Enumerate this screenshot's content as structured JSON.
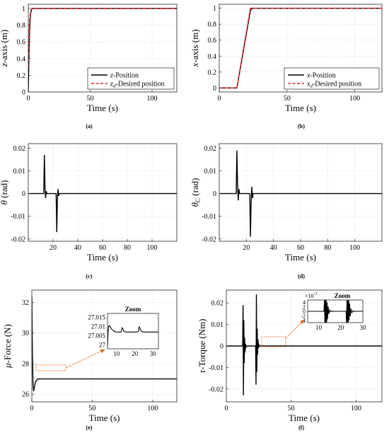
{
  "chart_data": [
    {
      "id": "a",
      "type": "line",
      "caption": "(a)",
      "xlabel": "Time (s)",
      "ylabel": "z-axis (m)",
      "xlim": [
        0,
        120
      ],
      "ylim": [
        0,
        1.05
      ],
      "xticks": [
        0,
        50,
        100
      ],
      "yticks": [
        0,
        0.2,
        0.4,
        0.6,
        0.8,
        1
      ],
      "grid": true,
      "legend": "bottom-right",
      "series": [
        {
          "name": "z-Position",
          "color": "#000000",
          "dash": "solid",
          "x": [
            0,
            0.5,
            1,
            1.5,
            2,
            2.5,
            3,
            4,
            6,
            120
          ],
          "y": [
            0,
            0.4,
            0.7,
            0.87,
            0.95,
            0.98,
            0.995,
            1.0,
            1.0,
            1.0
          ]
        },
        {
          "name": "zd-Desired position",
          "color": "#e8262b",
          "dash": "dashed",
          "x": [
            0,
            1,
            2,
            3,
            4,
            120
          ],
          "y": [
            0.3,
            0.85,
            0.98,
            1.0,
            1.0,
            1.0
          ]
        }
      ]
    },
    {
      "id": "b",
      "type": "line",
      "caption": "(b)",
      "xlabel": "Time (s)",
      "ylabel": "x-axis (m)",
      "xlim": [
        0,
        120
      ],
      "ylim": [
        -0.05,
        1.05
      ],
      "xticks": [
        0,
        50,
        100
      ],
      "yticks": [
        0,
        0.2,
        0.4,
        0.6,
        0.8,
        1
      ],
      "grid": true,
      "legend": "bottom-right",
      "series": [
        {
          "name": "x-Position",
          "color": "#000000",
          "dash": "solid",
          "x": [
            0,
            13,
            23,
            24,
            120
          ],
          "y": [
            0,
            0,
            0.97,
            1.0,
            1.0
          ]
        },
        {
          "name": "xd-Desired position",
          "color": "#e8262b",
          "dash": "dashed",
          "x": [
            0,
            13,
            23,
            120
          ],
          "y": [
            0,
            0,
            1.0,
            1.0
          ]
        }
      ]
    },
    {
      "id": "c",
      "type": "line",
      "caption": "(c)",
      "xlabel": "Time (s)",
      "ylabel": "θ (rad)",
      "xlim": [
        0,
        120
      ],
      "ylim": [
        -0.021,
        0.022
      ],
      "xticks": [
        20,
        40,
        60,
        80,
        100
      ],
      "yticks": [
        -0.02,
        -0.01,
        0,
        0.01,
        0.02
      ],
      "grid": true,
      "series": [
        {
          "name": "",
          "color": "#000000",
          "dash": "solid",
          "x": [
            0,
            12.5,
            13,
            13.5,
            14,
            14.5,
            15,
            15.5,
            22.5,
            23,
            23.5,
            24,
            24.5,
            25,
            25.5,
            120
          ],
          "y": [
            0,
            0,
            0.017,
            0.003,
            -0.002,
            0.001,
            0,
            0,
            0,
            -0.017,
            -0.003,
            0.002,
            -0.001,
            0,
            0,
            0
          ]
        }
      ]
    },
    {
      "id": "d",
      "type": "line",
      "caption": "(d)",
      "xlabel": "Time (s)",
      "ylabel": "θC (rad)",
      "xlim": [
        0,
        120
      ],
      "ylim": [
        -0.021,
        0.022
      ],
      "xticks": [
        20,
        40,
        60,
        80,
        100
      ],
      "yticks": [
        -0.02,
        -0.01,
        0,
        0.01,
        0.02
      ],
      "grid": true,
      "series": [
        {
          "name": "",
          "color": "#000000",
          "dash": "solid",
          "x": [
            0,
            12.5,
            13,
            13.5,
            14,
            14.5,
            15,
            15.5,
            22.5,
            23,
            23.5,
            24,
            24.5,
            25,
            25.5,
            120
          ],
          "y": [
            0,
            0,
            0.019,
            0.004,
            -0.003,
            0.002,
            0,
            0,
            0,
            -0.019,
            -0.004,
            0.003,
            -0.002,
            0,
            0,
            0
          ]
        }
      ]
    },
    {
      "id": "e",
      "type": "line",
      "caption": "(e)",
      "xlabel": "Time (s)",
      "ylabel": "μ-Force (N)",
      "xlim": [
        0,
        120
      ],
      "ylim": [
        25.5,
        32.8
      ],
      "xticks": [
        0,
        50,
        100
      ],
      "yticks": [
        26,
        28,
        30,
        32
      ],
      "grid": true,
      "series": [
        {
          "name": "",
          "color": "#000000",
          "dash": "solid",
          "x": [
            0,
            0.5,
            1,
            1.5,
            2,
            3,
            5,
            8,
            120
          ],
          "y": [
            32.4,
            28.5,
            26.6,
            26.2,
            26.4,
            26.8,
            27.0,
            27.0,
            27.0
          ]
        }
      ],
      "inset": {
        "title": "Zoom",
        "xlim": [
          5,
          33
        ],
        "ylim": [
          26.998,
          27.017
        ],
        "xticks": [
          10,
          20,
          30
        ],
        "yticks": [
          27,
          27.005,
          27.01,
          27.015
        ],
        "ytick_labels": [
          "27",
          "27.005",
          "27.01",
          "27.015"
        ],
        "series": [
          {
            "color": "#000000",
            "x": [
              5,
              5.3,
              5.6,
              6,
              6.8,
              7.6,
              8.5,
              9.5,
              11,
              12.5,
              13,
              13.4,
              13.9,
              14.6,
              16,
              20,
              22,
              22.4,
              22.8,
              23.4,
              24.3,
              26,
              33
            ],
            "y": [
              26.999,
              27.007,
              27.01,
              27.0105,
              27.0093,
              27.0082,
              27.0075,
              27.0071,
              27.007,
              27.007,
              27.0093,
              27.0088,
              27.0076,
              27.0071,
              27.007,
              27.007,
              27.0072,
              27.0098,
              27.0091,
              27.0077,
              27.0071,
              27.007,
              27.007
            ]
          }
        ]
      }
    },
    {
      "id": "f",
      "type": "line",
      "caption": "(f)",
      "xlabel": "Time (s)",
      "ylabel": "τ-Torque (Nm)",
      "xlim": [
        0,
        120
      ],
      "ylim": [
        -0.026,
        0.026
      ],
      "xticks": [
        0,
        50,
        100
      ],
      "yticks": [
        -0.02,
        -0.01,
        0,
        0.01,
        0.02
      ],
      "grid": true,
      "series": [
        {
          "name": "",
          "color": "#000000",
          "dash": "solid",
          "x": [
            0,
            12.6,
            12.9,
            13.2,
            13.5,
            13.8,
            14.1,
            14.4,
            14.8,
            15.2,
            15.6,
            16,
            22.6,
            22.9,
            23.2,
            23.5,
            23.8,
            24.1,
            24.4,
            24.8,
            25.2,
            25.6,
            26,
            120
          ],
          "y": [
            0,
            0,
            0.019,
            -0.023,
            0.012,
            -0.008,
            0.004,
            -0.003,
            0.001,
            -0.0005,
            0,
            0,
            0,
            -0.018,
            0.024,
            -0.012,
            0.008,
            -0.004,
            0.003,
            -0.001,
            0.0005,
            0,
            0,
            0
          ]
        }
      ],
      "inset": {
        "title": "Zoom",
        "exponent_label": "×10",
        "exponent": "-3",
        "xlim": [
          5,
          30
        ],
        "ylim": [
          -5,
          5
        ],
        "xticks": [
          10,
          20,
          30
        ],
        "yticks": [
          -4,
          -2,
          0,
          2,
          4
        ],
        "ytick_labels": [
          "-4",
          "-2",
          "0",
          "2",
          "4"
        ],
        "series": [
          {
            "color": "#000000",
            "x": [
              5,
              12.4,
              12.6,
              12.8,
              13.0,
              13.2,
              13.4,
              13.6,
              13.8,
              14.0,
              14.3,
              14.6,
              15.0,
              15.5,
              16.2,
              17,
              22.4,
              22.6,
              22.8,
              23.0,
              23.2,
              23.4,
              23.6,
              23.8,
              24.0,
              24.3,
              24.6,
              25.0,
              25.5,
              26.2,
              27,
              30
            ],
            "y": [
              0,
              0,
              5,
              -5,
              5,
              -5,
              5,
              -5,
              4,
              -3.5,
              2.2,
              -1.2,
              0.6,
              -0.2,
              0.05,
              0,
              0,
              -5,
              5,
              -5,
              5,
              -5,
              5,
              -4,
              3.5,
              -2.2,
              1.2,
              -0.6,
              0.2,
              -0.05,
              0,
              0
            ]
          }
        ]
      }
    }
  ]
}
